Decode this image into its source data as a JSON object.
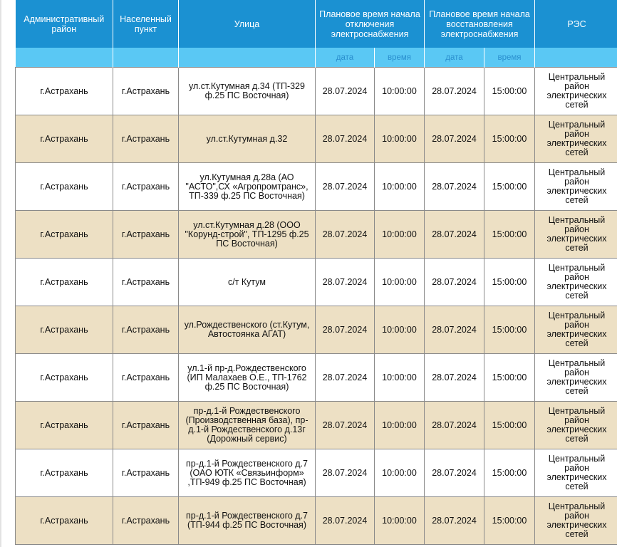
{
  "header": {
    "admin_district": "Административный район",
    "settlement": "Населенный пункт",
    "street": "Улица",
    "outage_start": "Плановое время начала отключения электроснабжения",
    "restore_start": "Плановое время начала восстановления электроснабжения",
    "res": "РЭС",
    "date_label": "дата",
    "time_label": "время"
  },
  "rows": [
    {
      "district": "г.Астрахань",
      "settlement": "г.Астрахань",
      "street": "ул.ст.Кутумная д.34 (ТП-329 ф.25 ПС Восточная)",
      "off_date": "28.07.2024",
      "off_time": "10:00:00",
      "on_date": "28.07.2024",
      "on_time": "15:00:00",
      "res": "Центральный район электрических сетей"
    },
    {
      "district": "г.Астрахань",
      "settlement": "г.Астрахань",
      "street": "ул.ст.Кутумная д.32",
      "off_date": "28.07.2024",
      "off_time": "10:00:00",
      "on_date": "28.07.2024",
      "on_time": "15:00:00",
      "res": "Центральный район электрических сетей"
    },
    {
      "district": "г.Астрахань",
      "settlement": "г.Астрахань",
      "street": "ул.Кутумная д.28а (АО \"АСТО\",СХ «Агропромтранс», ТП-339 ф.25 ПС Восточная)",
      "off_date": "28.07.2024",
      "off_time": "10:00:00",
      "on_date": "28.07.2024",
      "on_time": "15:00:00",
      "res": "Центральный район электрических сетей"
    },
    {
      "district": "г.Астрахань",
      "settlement": "г.Астрахань",
      "street": "ул.ст.Кутумная д.28 (ООО \"Корунд-строй\", ТП-1295 ф.25 ПС Восточная)",
      "off_date": "28.07.2024",
      "off_time": "10:00:00",
      "on_date": "28.07.2024",
      "on_time": "15:00:00",
      "res": "Центральный район электрических сетей"
    },
    {
      "district": "г.Астрахань",
      "settlement": "г.Астрахань",
      "street": "с/т Кутум",
      "off_date": "28.07.2024",
      "off_time": "10:00:00",
      "on_date": "28.07.2024",
      "on_time": "15:00:00",
      "res": "Центральный район электрических сетей"
    },
    {
      "district": "г.Астрахань",
      "settlement": "г.Астрахань",
      "street": "ул.Рождественского (ст.Кутум, Автостоянка АГАТ)",
      "off_date": "28.07.2024",
      "off_time": "10:00:00",
      "on_date": "28.07.2024",
      "on_time": "15:00:00",
      "res": "Центральный район электрических сетей"
    },
    {
      "district": "г.Астрахань",
      "settlement": "г.Астрахань",
      "street": "ул.1-й пр-д.Рождественского (ИП Малахаев О.Е., ТП-1762 ф.25 ПС Восточная)",
      "off_date": "28.07.2024",
      "off_time": "10:00:00",
      "on_date": "28.07.2024",
      "on_time": "15:00:00",
      "res": "Центральный район электрических сетей"
    },
    {
      "district": "г.Астрахань",
      "settlement": "г.Астрахань",
      "street": "пр-д.1-й Рождественского (Производственная база), пр-д.1-й Рождественского д.13г (Дорожный сервис)",
      "off_date": "28.07.2024",
      "off_time": "10:00:00",
      "on_date": "28.07.2024",
      "on_time": "15:00:00",
      "res": "Центральный район электрических сетей"
    },
    {
      "district": "г.Астрахань",
      "settlement": "г.Астрахань",
      "street": "пр-д.1-й Рождественского д.7 (ОАО ЮТК «Связьинформ» ,ТП-949 ф.25 ПС Восточная)",
      "off_date": "28.07.2024",
      "off_time": "10:00:00",
      "on_date": "28.07.2024",
      "on_time": "15:00:00",
      "res": "Центральный район электрических сетей"
    },
    {
      "district": "г.Астрахань",
      "settlement": "г.Астрахань",
      "street": "пр-д.1-й Рождественского д.7 (ТП-944 ф.25 ПС Восточная)",
      "off_date": "28.07.2024",
      "off_time": "10:00:00",
      "on_date": "28.07.2024",
      "on_time": "15:00:00",
      "res": "Центральный район электрических сетей"
    }
  ]
}
